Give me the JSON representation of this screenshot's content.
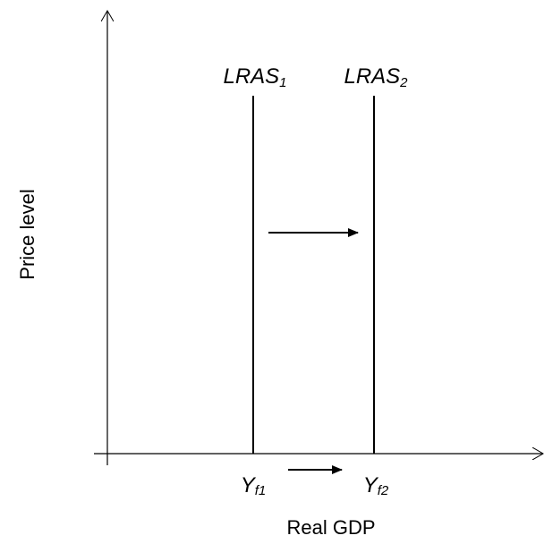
{
  "axes": {
    "y_label": "Price level",
    "x_label": "Real GDP"
  },
  "curves": [
    {
      "label": "LRAS",
      "subscript": "1"
    },
    {
      "label": "LRAS",
      "subscript": "2"
    }
  ],
  "output_levels": [
    {
      "label": "Y",
      "subscript": "f1"
    },
    {
      "label": "Y",
      "subscript": "f2"
    }
  ]
}
